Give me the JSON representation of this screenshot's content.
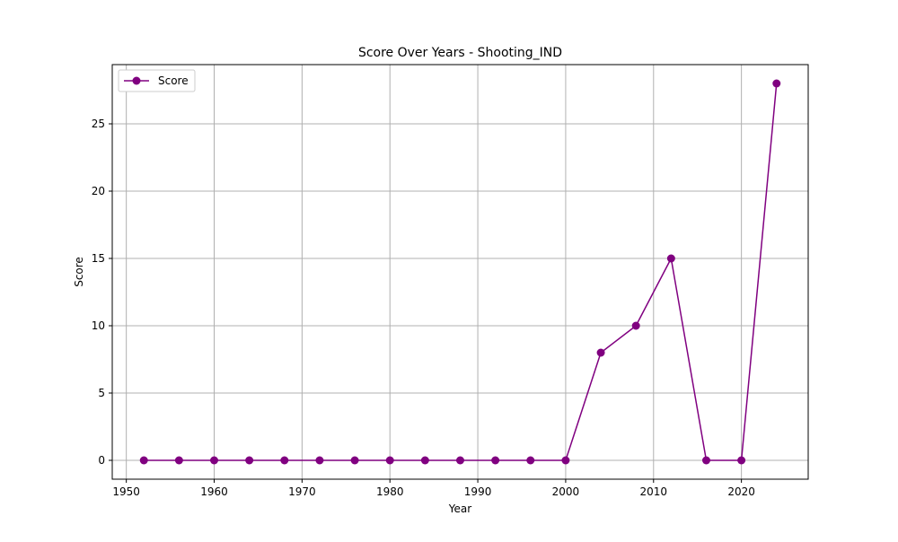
{
  "chart_data": {
    "type": "line",
    "title": "Score Over Years - Shooting_IND",
    "xlabel": "Year",
    "ylabel": "Score",
    "xlim": [
      1948.4,
      2027.6
    ],
    "ylim": [
      -1.4,
      29.4
    ],
    "xticks": [
      1950,
      1960,
      1970,
      1980,
      1990,
      2000,
      2010,
      2020
    ],
    "yticks": [
      0,
      5,
      10,
      15,
      20,
      25
    ],
    "grid": true,
    "legend_position": "upper left",
    "series": [
      {
        "name": "Score",
        "color": "#800080",
        "marker": "circle",
        "x": [
          1952,
          1956,
          1960,
          1964,
          1968,
          1972,
          1976,
          1980,
          1984,
          1988,
          1992,
          1996,
          2000,
          2004,
          2008,
          2012,
          2016,
          2020,
          2024
        ],
        "y": [
          0,
          0,
          0,
          0,
          0,
          0,
          0,
          0,
          0,
          0,
          0,
          0,
          0,
          8,
          10,
          15,
          0,
          0,
          28
        ]
      }
    ]
  }
}
